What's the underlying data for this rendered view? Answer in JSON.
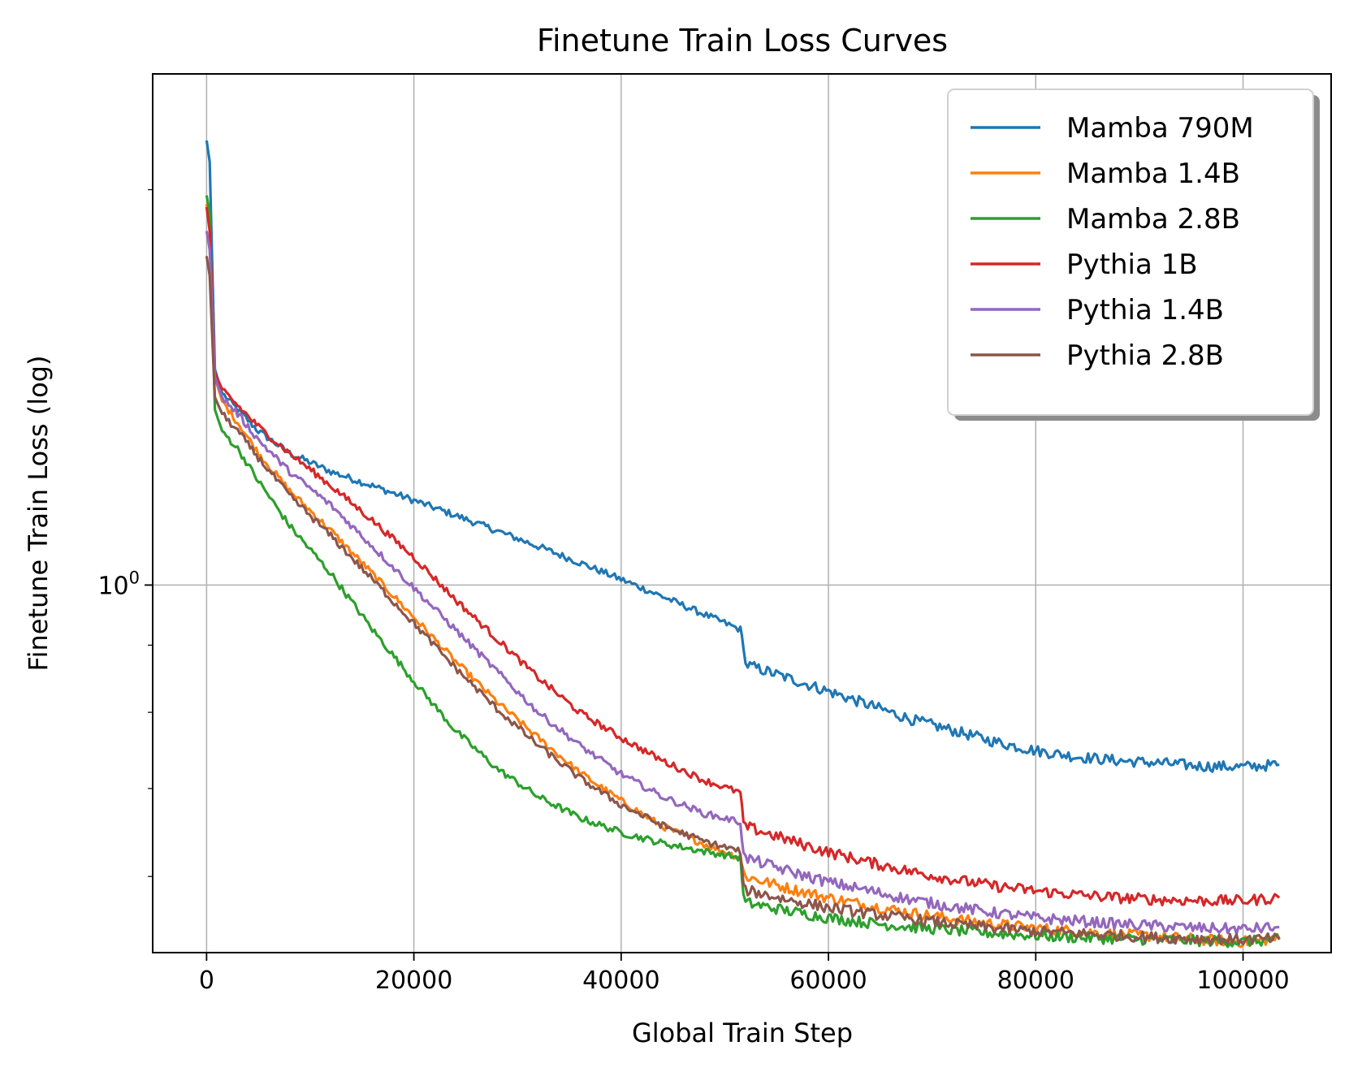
{
  "chart_data": {
    "type": "line",
    "title": "Finetune Train Loss Curves",
    "xlabel": "Global Train Step",
    "ylabel": "Finetune Train Loss (log)",
    "yscale": "log",
    "xlim": [
      -5200,
      108500
    ],
    "ylim": [
      0.525,
      2.45
    ],
    "xticks": [
      0,
      20000,
      40000,
      60000,
      80000,
      100000
    ],
    "xtick_labels": [
      "0",
      "20000",
      "40000",
      "60000",
      "80000",
      "100000"
    ],
    "yticks_major": [
      1.0
    ],
    "ytick_major_label_base": "10",
    "ytick_major_label_exp": "0",
    "yticks_minor": [
      0.6,
      0.7,
      0.8,
      0.9,
      2.0
    ],
    "grid": true,
    "legend_position": "upper-right",
    "series": [
      {
        "name": "Mamba 790M",
        "color": "#1f77b4",
        "x": [
          0,
          300,
          800,
          1500,
          3000,
          5000,
          8000,
          12000,
          16000,
          20000,
          24000,
          28000,
          32000,
          36000,
          40000,
          44000,
          48000,
          51500,
          51800,
          52000,
          56000,
          60000,
          64000,
          68000,
          72000,
          76000,
          80000,
          84000,
          88000,
          92000,
          96000,
          100000,
          103500
        ],
        "y": [
          2.18,
          2.1,
          1.46,
          1.4,
          1.36,
          1.31,
          1.26,
          1.22,
          1.19,
          1.16,
          1.13,
          1.1,
          1.07,
          1.04,
          1.01,
          0.98,
          0.95,
          0.925,
          0.9,
          0.87,
          0.85,
          0.83,
          0.81,
          0.79,
          0.775,
          0.76,
          0.748,
          0.74,
          0.735,
          0.732,
          0.728,
          0.727,
          0.73
        ]
      },
      {
        "name": "Mamba 1.4B",
        "color": "#ff7f0e",
        "x": [
          0,
          300,
          800,
          1500,
          3000,
          5000,
          8000,
          12000,
          16000,
          20000,
          24000,
          28000,
          32000,
          36000,
          40000,
          44000,
          48000,
          51500,
          51800,
          52000,
          56000,
          60000,
          64000,
          68000,
          72000,
          76000,
          80000,
          84000,
          88000,
          92000,
          96000,
          100000,
          103500
        ],
        "y": [
          1.95,
          1.88,
          1.44,
          1.38,
          1.33,
          1.26,
          1.18,
          1.1,
          1.02,
          0.945,
          0.875,
          0.815,
          0.765,
          0.72,
          0.685,
          0.655,
          0.635,
          0.62,
          0.605,
          0.6,
          0.588,
          0.578,
          0.57,
          0.563,
          0.557,
          0.552,
          0.548,
          0.545,
          0.542,
          0.54,
          0.537,
          0.535,
          0.538
        ]
      },
      {
        "name": "Mamba 2.8B",
        "color": "#2ca02c",
        "x": [
          0,
          300,
          800,
          1500,
          3000,
          5000,
          8000,
          12000,
          16000,
          20000,
          24000,
          28000,
          32000,
          36000,
          40000,
          44000,
          48000,
          51500,
          51800,
          52000,
          56000,
          60000,
          64000,
          68000,
          72000,
          76000,
          80000,
          84000,
          88000,
          92000,
          96000,
          100000,
          103500
        ],
        "y": [
          1.98,
          1.92,
          1.36,
          1.31,
          1.27,
          1.2,
          1.11,
          1.02,
          0.925,
          0.845,
          0.775,
          0.725,
          0.69,
          0.665,
          0.648,
          0.636,
          0.627,
          0.62,
          0.58,
          0.573,
          0.565,
          0.558,
          0.553,
          0.549,
          0.546,
          0.543,
          0.541,
          0.539,
          0.538,
          0.537,
          0.536,
          0.535,
          0.537
        ]
      },
      {
        "name": "Pythia 1B",
        "color": "#d62728",
        "x": [
          0,
          300,
          800,
          1500,
          3000,
          5000,
          8000,
          12000,
          16000,
          20000,
          24000,
          28000,
          32000,
          36000,
          40000,
          44000,
          48000,
          51500,
          51800,
          52000,
          56000,
          60000,
          64000,
          68000,
          72000,
          76000,
          80000,
          84000,
          88000,
          92000,
          96000,
          100000,
          103500
        ],
        "y": [
          1.94,
          1.86,
          1.45,
          1.41,
          1.37,
          1.32,
          1.26,
          1.19,
          1.12,
          1.05,
          0.975,
          0.91,
          0.85,
          0.8,
          0.765,
          0.735,
          0.71,
          0.695,
          0.66,
          0.655,
          0.64,
          0.626,
          0.615,
          0.605,
          0.597,
          0.59,
          0.585,
          0.581,
          0.578,
          0.576,
          0.575,
          0.575,
          0.578
        ]
      },
      {
        "name": "Pythia 1.4B",
        "color": "#9467bd",
        "x": [
          0,
          300,
          800,
          1500,
          3000,
          5000,
          8000,
          12000,
          16000,
          20000,
          24000,
          28000,
          32000,
          36000,
          40000,
          44000,
          48000,
          51500,
          51800,
          52000,
          56000,
          60000,
          64000,
          68000,
          72000,
          76000,
          80000,
          84000,
          88000,
          92000,
          96000,
          100000,
          103500
        ],
        "y": [
          1.86,
          1.8,
          1.44,
          1.39,
          1.35,
          1.29,
          1.22,
          1.15,
          1.07,
          0.995,
          0.925,
          0.86,
          0.8,
          0.755,
          0.718,
          0.69,
          0.67,
          0.66,
          0.625,
          0.62,
          0.606,
          0.594,
          0.585,
          0.576,
          0.569,
          0.563,
          0.558,
          0.555,
          0.552,
          0.55,
          0.548,
          0.547,
          0.549
        ]
      },
      {
        "name": "Pythia 2.8B",
        "color": "#8c564b",
        "x": [
          0,
          300,
          800,
          1500,
          3000,
          5000,
          8000,
          12000,
          16000,
          20000,
          24000,
          28000,
          32000,
          36000,
          40000,
          44000,
          48000,
          51500,
          51800,
          52000,
          56000,
          60000,
          64000,
          68000,
          72000,
          76000,
          80000,
          84000,
          88000,
          92000,
          96000,
          100000,
          103500
        ],
        "y": [
          1.78,
          1.72,
          1.39,
          1.35,
          1.31,
          1.25,
          1.17,
          1.09,
          1.01,
          0.935,
          0.865,
          0.805,
          0.755,
          0.713,
          0.68,
          0.656,
          0.638,
          0.627,
          0.59,
          0.586,
          0.576,
          0.568,
          0.562,
          0.557,
          0.552,
          0.548,
          0.545,
          0.543,
          0.541,
          0.539,
          0.538,
          0.537,
          0.538
        ]
      }
    ]
  }
}
